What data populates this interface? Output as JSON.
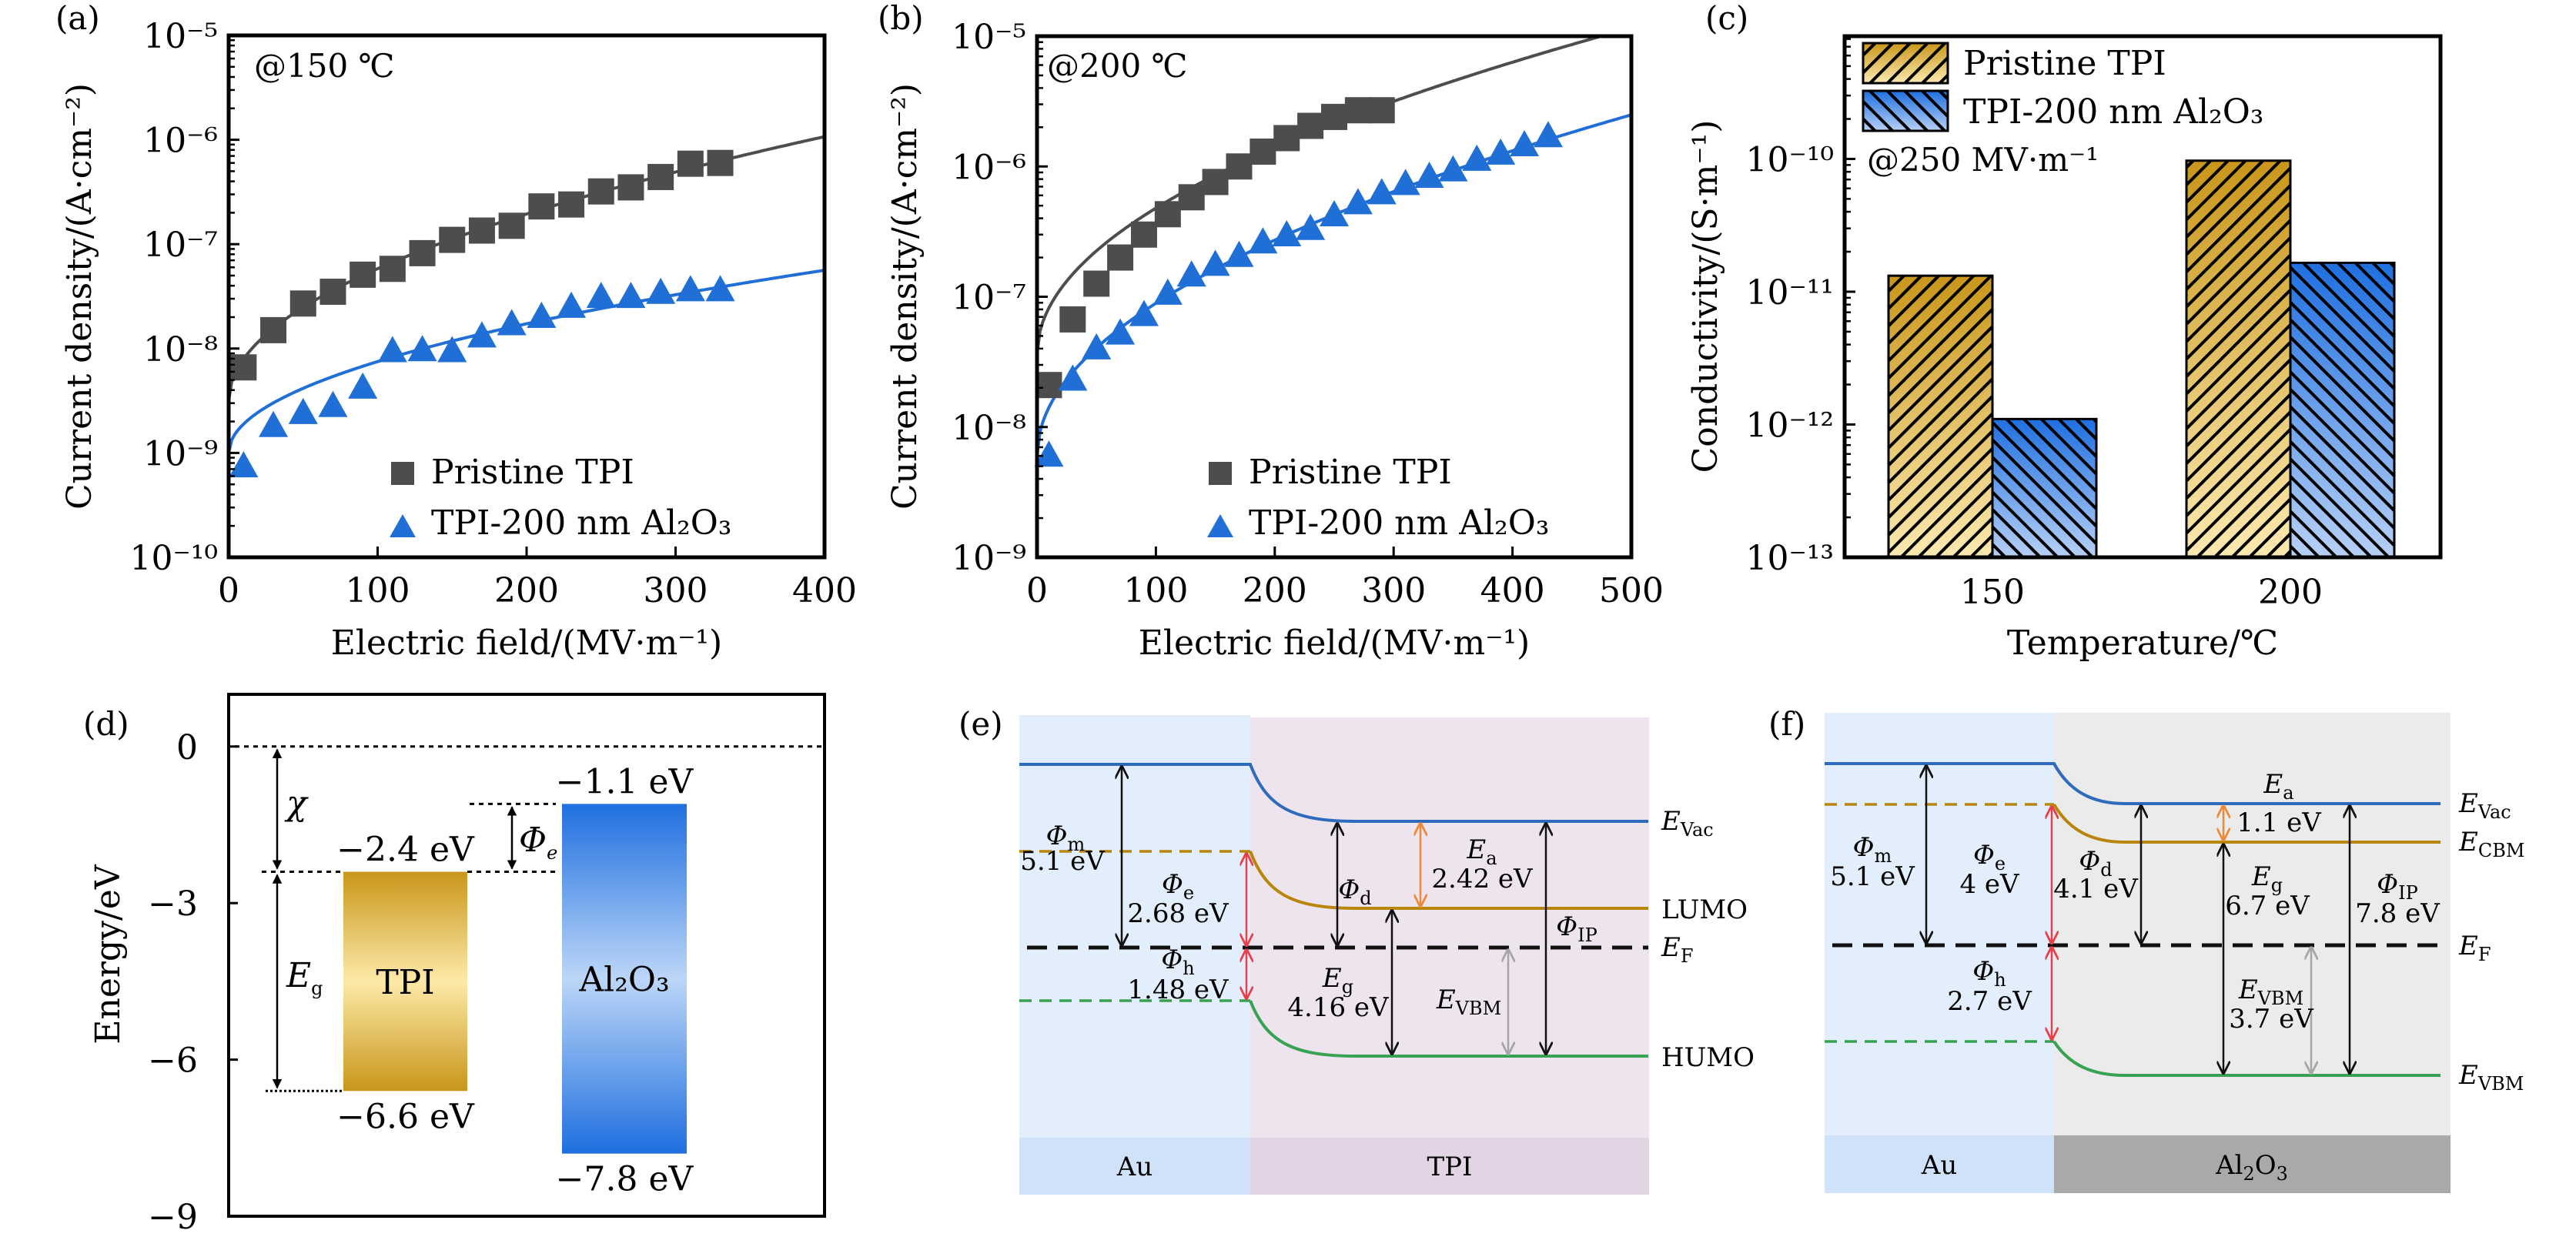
{
  "figure": {
    "panels": [
      "(a)",
      "(b)",
      "(c)",
      "(d)",
      "(e)",
      "(f)"
    ]
  },
  "colors": {
    "pristine": "#4d4d4d",
    "al2o3": "#1f6fd6",
    "fit_pristine": "#4d4d4d",
    "fit_al2o3": "#1f6fd6",
    "tpi_gold": "#c9961a",
    "tpi_light": "#fde9a8",
    "al_blue": "#1f6fe0",
    "al_light": "#bcd6f7",
    "evac": "#2f6bbd",
    "lumo": "#b8860b",
    "humo": "#37a352",
    "ef": "#111111",
    "phi_red": "#ea3f4a",
    "ea_orange": "#ec8a3a",
    "evbm_gray": "#a6a6a6",
    "au_bg": "#e2eefb",
    "au_band": "#cfe2f8",
    "tpi_bg": "#ede4ee",
    "tpi_band": "#e2d3e5",
    "al_bg": "#ebebeb",
    "al_band": "#a9a9a9"
  },
  "chart_data": [
    {
      "id": "a",
      "panel_label": "(a)",
      "type": "scatter",
      "annotation": "@150 ℃",
      "xlabel": "Electric field/(MV·m⁻¹)",
      "ylabel": "Current density/(A·cm⁻²)",
      "xlim": [
        0,
        400
      ],
      "ylim": [
        1e-10,
        1e-05
      ],
      "yscale": "log",
      "xticks": [
        "0",
        "100",
        "200",
        "300",
        "400"
      ],
      "xtick_values": [
        0,
        100,
        200,
        300,
        400
      ],
      "yticks": [
        "10⁻¹⁰",
        "10⁻⁹",
        "10⁻⁸",
        "10⁻⁷",
        "10⁻⁶",
        "10⁻⁵"
      ],
      "ytick_exponents": [
        -10,
        -9,
        -8,
        -7,
        -6,
        -5
      ],
      "legend_position": "bottom-right",
      "series": [
        {
          "name": "Pristine TPI",
          "marker": "square",
          "x": [
            10,
            30,
            50,
            70,
            90,
            110,
            130,
            150,
            170,
            190,
            210,
            230,
            250,
            270,
            290,
            310,
            330
          ],
          "y": [
            6.6e-09,
            1.5e-08,
            2.7e-08,
            3.5e-08,
            5.1e-08,
            5.8e-08,
            8.2e-08,
            1.1e-07,
            1.35e-07,
            1.5e-07,
            2.3e-07,
            2.4e-07,
            3.2e-07,
            3.5e-07,
            4.4e-07,
            5.9e-07,
            6e-07
          ],
          "fit": {
            "model": "log10(J) = a + b·sqrt(E)",
            "a": -8.5,
            "b": 0.1265,
            "x_range": [
              0,
              400
            ]
          }
        },
        {
          "name": "TPI-200 nm Al₂O₃",
          "marker": "triangle",
          "x": [
            10,
            30,
            50,
            70,
            90,
            110,
            130,
            150,
            170,
            190,
            210,
            230,
            250,
            270,
            290,
            310,
            330
          ],
          "y": [
            7.4e-10,
            1.8e-09,
            2.4e-09,
            2.8e-09,
            4.2e-09,
            9.4e-09,
            9.6e-09,
            9.4e-09,
            1.3e-08,
            1.7e-08,
            2e-08,
            2.5e-08,
            3.1e-08,
            3.1e-08,
            3.4e-08,
            3.6e-08,
            3.6e-08
          ],
          "fit": {
            "model": "log10(J) = a + b·sqrt(E)",
            "a": -9.0,
            "b": 0.0875,
            "x_range": [
              0,
              400
            ]
          }
        }
      ]
    },
    {
      "id": "b",
      "panel_label": "(b)",
      "type": "scatter",
      "annotation": "@200 ℃",
      "xlabel": "Electric field/(MV·m⁻¹)",
      "ylabel": "Current density/(A·cm⁻²)",
      "xlim": [
        0,
        500
      ],
      "ylim": [
        1e-09,
        1e-05
      ],
      "yscale": "log",
      "xticks": [
        "0",
        "100",
        "200",
        "300",
        "400",
        "500"
      ],
      "xtick_values": [
        0,
        100,
        200,
        300,
        400,
        500
      ],
      "yticks": [
        "10⁻⁹",
        "10⁻⁸",
        "10⁻⁷",
        "10⁻⁶",
        "10⁻⁵"
      ],
      "ytick_exponents": [
        -9,
        -8,
        -7,
        -6,
        -5
      ],
      "legend_position": "bottom-right",
      "series": [
        {
          "name": "Pristine TPI",
          "marker": "square",
          "x": [
            10,
            30,
            50,
            70,
            90,
            110,
            130,
            150,
            170,
            190,
            210,
            230,
            250,
            270,
            290
          ],
          "y": [
            2.1e-08,
            6.7e-08,
            1.26e-07,
            2e-07,
            3e-07,
            4.3e-07,
            5.8e-07,
            7.6e-07,
            1e-06,
            1.3e-06,
            1.65e-06,
            2.05e-06,
            2.4e-06,
            2.7e-06,
            2.7e-06
          ],
          "fit": {
            "model": "log10(J) = a + b·sqrt(E)",
            "a": -7.44,
            "b": 0.112,
            "x_range": [
              0,
              500
            ]
          }
        },
        {
          "name": "TPI-200 nm Al₂O₃",
          "marker": "triangle",
          "x": [
            10,
            30,
            50,
            70,
            90,
            110,
            130,
            150,
            170,
            190,
            210,
            230,
            250,
            270,
            290,
            310,
            330,
            350,
            370,
            390,
            410,
            430
          ],
          "y": [
            6e-09,
            2.3e-08,
            4e-08,
            5.2e-08,
            7.2e-08,
            1.05e-07,
            1.45e-07,
            1.75e-07,
            2.05e-07,
            2.6e-07,
            2.95e-07,
            3.3e-07,
            4.2e-07,
            5.2e-07,
            6.2e-07,
            7.3e-07,
            8.3e-07,
            9.3e-07,
            1.12e-06,
            1.25e-06,
            1.45e-06,
            1.7e-06
          ],
          "fit": {
            "model": "log10(J) = a + b·sqrt(E)",
            "a": -8.22,
            "b": 0.117,
            "x_range": [
              0,
              500
            ]
          }
        }
      ]
    },
    {
      "id": "c",
      "panel_label": "(c)",
      "type": "bar",
      "annotation": "@250 MV·m⁻¹",
      "xlabel": "Temperature/℃",
      "ylabel": "Conductivity/(S·m⁻¹)",
      "categories": [
        "150",
        "200"
      ],
      "yscale": "log",
      "ylim": [
        1e-13,
        8.4e-10
      ],
      "yticks": [
        "10⁻¹³",
        "10⁻¹²",
        "10⁻¹¹",
        "10⁻¹⁰"
      ],
      "ytick_exponents": [
        -13,
        -12,
        -11,
        -10
      ],
      "legend_position": "top-left",
      "series": [
        {
          "name": "Pristine TPI",
          "values": [
            1.32e-11,
            9.7e-11
          ],
          "hatch": "forward"
        },
        {
          "name": "TPI-200 nm Al₂O₃",
          "values": [
            1.1e-12,
            1.65e-11
          ],
          "hatch": "backward"
        }
      ]
    },
    {
      "id": "d",
      "panel_label": "(d)",
      "type": "bar",
      "ylabel": "Energy/eV",
      "ylim": [
        -9,
        1
      ],
      "yticks": [
        "0",
        "−3",
        "−6",
        "−9"
      ],
      "ytick_values": [
        0,
        -3,
        -6,
        -9
      ],
      "vacuum_level": 0,
      "bands": [
        {
          "name": "TPI",
          "top": -2.4,
          "bottom": -6.6,
          "top_label": "−2.4 eV",
          "bottom_label": "−6.6 eV"
        },
        {
          "name": "Al₂O₃",
          "top": -1.1,
          "bottom": -7.8,
          "top_label": "−1.1 eV",
          "bottom_label": "−7.8 eV"
        }
      ],
      "annotations": {
        "chi": "χ",
        "eg": "E",
        "eg_sub": "g",
        "phi": "Φ",
        "phi_sub": "e"
      }
    }
  ],
  "diagram_e": {
    "panel_label": "(e)",
    "regions": {
      "left": "Au",
      "right": "TPI"
    },
    "level_labels": {
      "evac": "E",
      "evac_sub": "Vac",
      "lumo": "LUMO",
      "ef": "E",
      "ef_sub": "F",
      "humo": "HUMO"
    },
    "arrows": {
      "phi_m": {
        "sym": "Φ",
        "sub": "m",
        "value": "5.1 eV"
      },
      "phi_e": {
        "sym": "Φ",
        "sub": "e",
        "value": "2.68 eV"
      },
      "phi_h": {
        "sym": "Φ",
        "sub": "h",
        "value": "1.48 eV"
      },
      "phi_d": {
        "sym": "Φ",
        "sub": "d",
        "value": ""
      },
      "e_a": {
        "sym": "E",
        "sub": "a",
        "value": "2.42 eV"
      },
      "e_g": {
        "sym": "E",
        "sub": "g",
        "value": "4.16 eV"
      },
      "e_vbm": {
        "sym": "E",
        "sub": "VBM",
        "value": ""
      },
      "phi_ip": {
        "sym": "Φ",
        "sub": "IP",
        "value": ""
      }
    }
  },
  "diagram_f": {
    "panel_label": "(f)",
    "regions": {
      "left": "Au",
      "right": "Al",
      "right_sub1": "2",
      "right_mid": "O",
      "right_sub2": "3"
    },
    "level_labels": {
      "evac": "E",
      "evac_sub": "Vac",
      "cbm": "E",
      "cbm_sub": "CBM",
      "ef": "E",
      "ef_sub": "F",
      "vbm": "E",
      "vbm_sub": "VBM"
    },
    "arrows": {
      "phi_m": {
        "sym": "Φ",
        "sub": "m",
        "value": "5.1 eV"
      },
      "phi_e": {
        "sym": "Φ",
        "sub": "e",
        "value": "4 eV"
      },
      "phi_h": {
        "sym": "Φ",
        "sub": "h",
        "value": "2.7 eV"
      },
      "phi_d": {
        "sym": "Φ",
        "sub": "d",
        "value": "4.1 eV"
      },
      "e_a": {
        "sym": "E",
        "sub": "a",
        "value": "1.1 eV"
      },
      "e_g": {
        "sym": "E",
        "sub": "g",
        "value": "6.7 eV"
      },
      "e_vbm": {
        "sym": "E",
        "sub": "VBM",
        "value": "3.7 eV"
      },
      "phi_ip": {
        "sym": "Φ",
        "sub": "IP",
        "value": "7.8 eV"
      }
    }
  }
}
